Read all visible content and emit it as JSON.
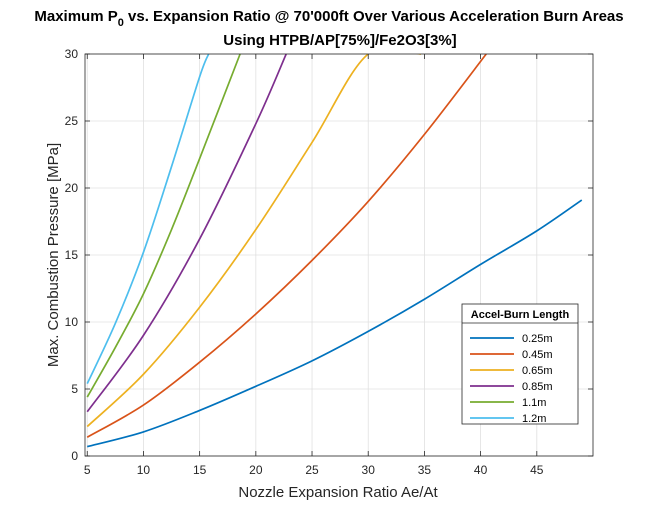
{
  "chart_data": {
    "type": "line",
    "title_prefix": "Maximum P",
    "title_subscript": "0",
    "title_suffix": " vs. Expansion Ratio @ 70'000ft Over Various Acceleration Burn Areas",
    "subtitle": "Using HTPB/AP[75%]/Fe2O3[3%]",
    "xlabel": "Nozzle Expansion Ratio Ae/At",
    "ylabel": "Max. Combustion Pressure [MPa]",
    "xlim": [
      4.8,
      50
    ],
    "ylim": [
      0,
      30
    ],
    "xticks": [
      5,
      10,
      15,
      20,
      25,
      30,
      35,
      40,
      45
    ],
    "yticks": [
      0,
      5,
      10,
      15,
      20,
      25,
      30
    ],
    "grid": true,
    "legend_title": "Accel-Burn Length",
    "legend_position": "lower-right",
    "series": [
      {
        "name": "0.25m",
        "color": "#0072BD",
        "x": [
          5,
          10,
          15,
          20,
          25,
          30,
          35,
          40,
          45,
          49
        ],
        "y": [
          0.7,
          1.8,
          3.4,
          5.2,
          7.1,
          9.3,
          11.7,
          14.3,
          16.8,
          19.1
        ]
      },
      {
        "name": "0.45m",
        "color": "#D95319",
        "x": [
          5,
          10,
          15,
          20,
          25,
          30,
          35,
          40.5
        ],
        "y": [
          1.4,
          3.8,
          7.0,
          10.6,
          14.6,
          19.0,
          24.0,
          30.0
        ]
      },
      {
        "name": "0.65m",
        "color": "#EDB120",
        "x": [
          5,
          10,
          15,
          20,
          25,
          30,
          34.7
        ],
        "y": [
          2.2,
          6.1,
          11.1,
          16.9,
          23.4,
          30.0,
          30.0
        ]
      },
      {
        "name": "0.85m",
        "color": "#7E2F8E",
        "x": [
          5,
          10,
          15,
          20,
          22.7
        ],
        "y": [
          3.3,
          9.0,
          16.2,
          24.8,
          30.0
        ]
      },
      {
        "name": "1.1m",
        "color": "#77AC30",
        "x": [
          5,
          7.5,
          10,
          12.5,
          15,
          18.6
        ],
        "y": [
          4.4,
          8.1,
          12.1,
          16.9,
          22.2,
          30.0
        ]
      },
      {
        "name": "1.2m",
        "color": "#4DBEEE",
        "x": [
          5,
          7.5,
          10,
          12.5,
          15,
          15.8
        ],
        "y": [
          5.4,
          9.9,
          15.2,
          21.6,
          28.3,
          30.0
        ]
      }
    ]
  }
}
